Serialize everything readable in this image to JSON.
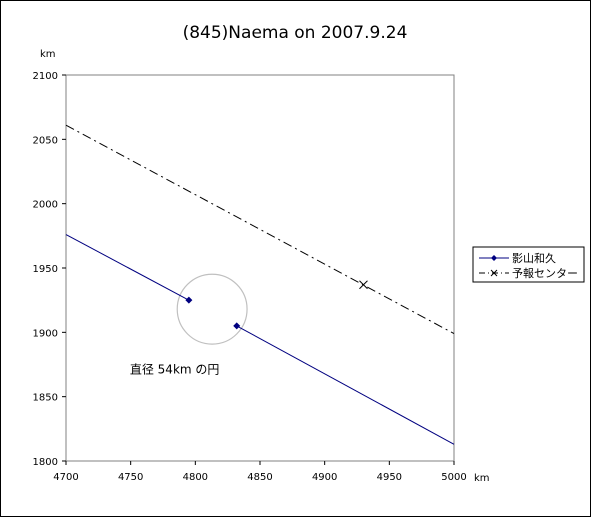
{
  "chart_data": {
    "type": "line",
    "title": "(845)Naema on 2007.9.24",
    "x_unit": "km",
    "y_unit": "km",
    "xlim": [
      4700,
      5000
    ],
    "ylim": [
      1800,
      2100
    ],
    "x_ticks": [
      "4700",
      "4750",
      "4800",
      "4850",
      "4900",
      "4950",
      "5000"
    ],
    "y_ticks": [
      "1800",
      "1850",
      "1900",
      "1950",
      "2000",
      "2050",
      "2100"
    ],
    "grid": false,
    "legend_position": "right",
    "series": [
      {
        "name": "影山和久",
        "color": "#000080",
        "style": "solid",
        "segments": [
          [
            [
              4700,
              1976
            ],
            [
              4795,
              1925
            ]
          ],
          [
            [
              4832,
              1905
            ],
            [
              5000,
              1813
            ]
          ]
        ],
        "markers": [
          [
            4795,
            1925
          ],
          [
            4832,
            1905
          ]
        ],
        "marker": "diamond"
      },
      {
        "name": "予報センター",
        "color": "#000000",
        "style": "dash-dot",
        "segments": [
          [
            [
              4700,
              2061
            ],
            [
              5000,
              1899
            ]
          ]
        ],
        "markers": [
          [
            4930,
            1937
          ]
        ],
        "marker": "x"
      }
    ],
    "circle": {
      "center": [
        4813,
        1918
      ],
      "radius_km": 27,
      "color": "#c0c0c0"
    },
    "annotation": {
      "text": "直径 54km の円",
      "x": 4784,
      "y": 1868
    }
  }
}
